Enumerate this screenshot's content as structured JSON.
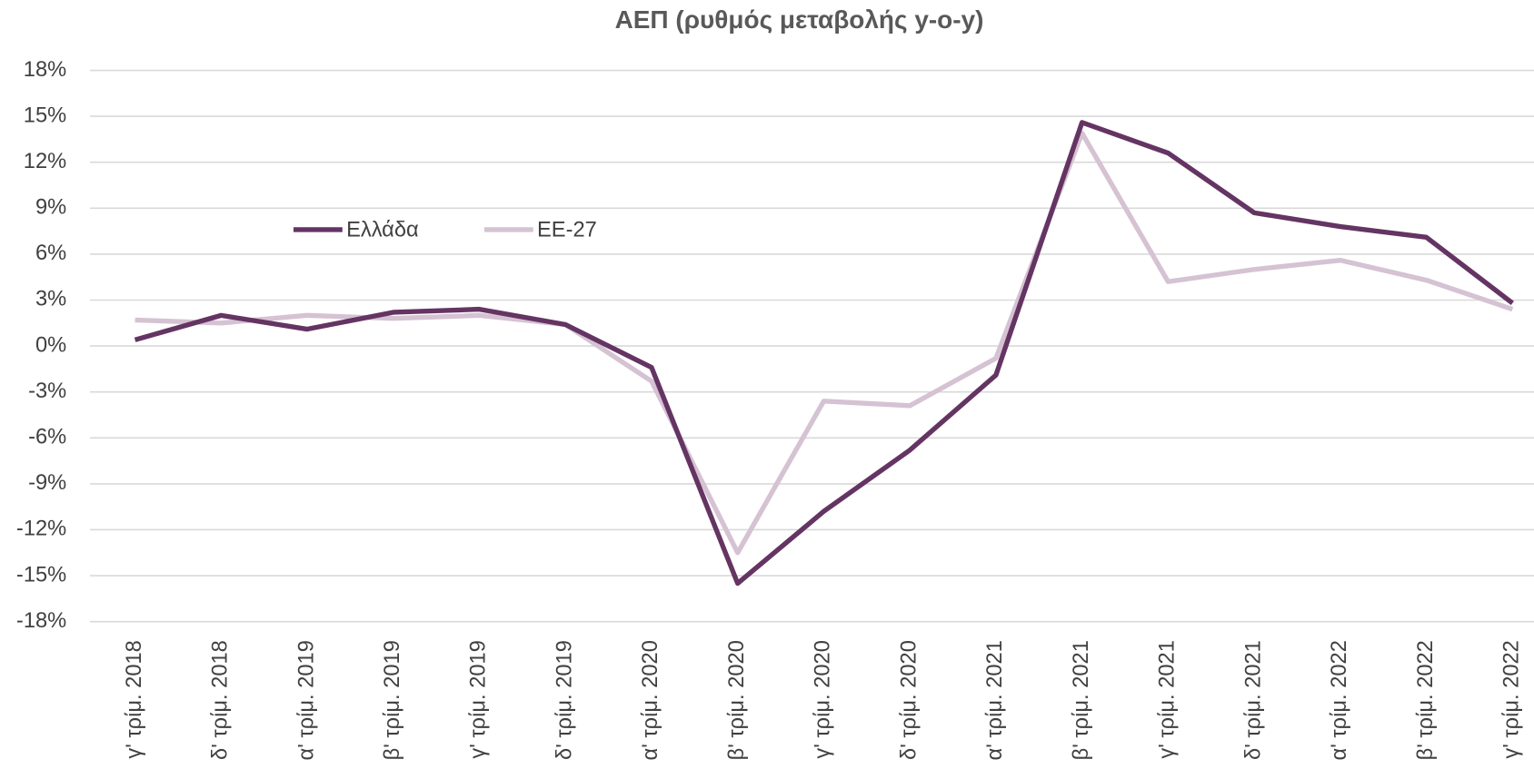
{
  "chart_data": {
    "type": "line",
    "title": "ΑΕΠ (ρυθμός μεταβολής y-o-y)",
    "categories": [
      "γ' τρίμ. 2018",
      "δ' τρίμ. 2018",
      "α' τρίμ. 2019",
      "β' τρίμ. 2019",
      "γ' τρίμ. 2019",
      "δ' τρίμ. 2019",
      "α' τρίμ. 2020",
      "β' τρίμ. 2020",
      "γ' τρίμ. 2020",
      "δ' τρίμ. 2020",
      "α' τρίμ. 2021",
      "β' τρίμ. 2021",
      "γ' τρίμ. 2021",
      "δ' τρίμ. 2021",
      "α' τρίμ. 2022",
      "β' τρίμ. 2022",
      "γ' τρίμ. 2022"
    ],
    "series": [
      {
        "name": "Ελλάδα",
        "color": "#643463",
        "values": [
          0.4,
          2.0,
          1.1,
          2.2,
          2.4,
          1.4,
          -1.4,
          -15.5,
          -10.8,
          -6.8,
          -1.9,
          14.6,
          12.6,
          8.7,
          7.8,
          7.1,
          2.8
        ]
      },
      {
        "name": "ΕΕ-27",
        "color": "#d5c2d3",
        "values": [
          1.7,
          1.5,
          2.0,
          1.8,
          2.0,
          1.4,
          -2.3,
          -13.5,
          -3.6,
          -3.9,
          -0.8,
          13.9,
          4.2,
          5.0,
          5.6,
          4.3,
          2.4
        ]
      }
    ],
    "ylim": [
      -18,
      18
    ],
    "yticks": [
      {
        "value": -18,
        "label": "-18%"
      },
      {
        "value": -15,
        "label": "-15%"
      },
      {
        "value": -12,
        "label": "-12%"
      },
      {
        "value": -9,
        "label": "-9%"
      },
      {
        "value": -6,
        "label": "-6%"
      },
      {
        "value": -3,
        "label": "-3%"
      },
      {
        "value": 0,
        "label": "0%"
      },
      {
        "value": 3,
        "label": "3%"
      },
      {
        "value": 6,
        "label": "6%"
      },
      {
        "value": 9,
        "label": "9%"
      },
      {
        "value": 12,
        "label": "12%"
      },
      {
        "value": 15,
        "label": "15%"
      },
      {
        "value": 18,
        "label": "18%"
      }
    ],
    "grid": true,
    "legend": "upper left"
  }
}
